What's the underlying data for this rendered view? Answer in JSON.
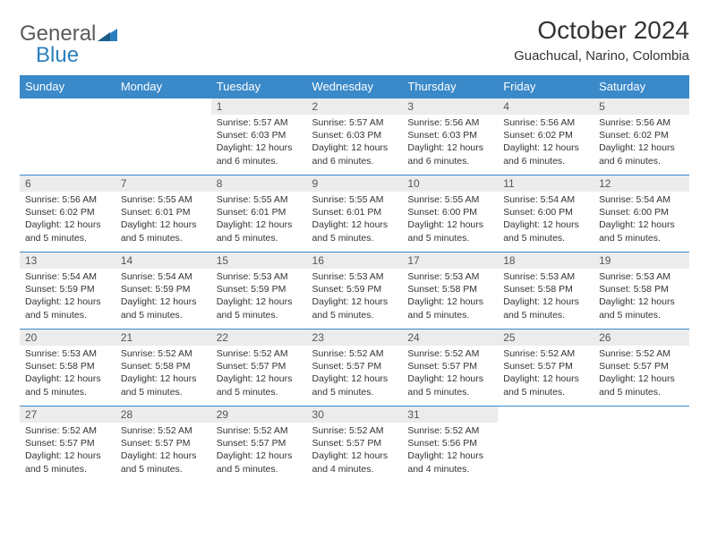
{
  "brand": {
    "name1": "General",
    "name2": "Blue"
  },
  "title": "October 2024",
  "location": "Guachucal, Narino, Colombia",
  "colors": {
    "header_bg": "#3a89c9",
    "header_text": "#ffffff",
    "daynum_bg": "#ececec",
    "cell_border": "#3a89c9",
    "logo_blue": "#2a7fbf",
    "logo_gray": "#5a5a5a"
  },
  "weekdays": [
    "Sunday",
    "Monday",
    "Tuesday",
    "Wednesday",
    "Thursday",
    "Friday",
    "Saturday"
  ],
  "weeks": [
    [
      null,
      null,
      {
        "n": "1",
        "sr": "5:57 AM",
        "ss": "6:03 PM",
        "dl": "12 hours and 6 minutes."
      },
      {
        "n": "2",
        "sr": "5:57 AM",
        "ss": "6:03 PM",
        "dl": "12 hours and 6 minutes."
      },
      {
        "n": "3",
        "sr": "5:56 AM",
        "ss": "6:03 PM",
        "dl": "12 hours and 6 minutes."
      },
      {
        "n": "4",
        "sr": "5:56 AM",
        "ss": "6:02 PM",
        "dl": "12 hours and 6 minutes."
      },
      {
        "n": "5",
        "sr": "5:56 AM",
        "ss": "6:02 PM",
        "dl": "12 hours and 6 minutes."
      }
    ],
    [
      {
        "n": "6",
        "sr": "5:56 AM",
        "ss": "6:02 PM",
        "dl": "12 hours and 5 minutes."
      },
      {
        "n": "7",
        "sr": "5:55 AM",
        "ss": "6:01 PM",
        "dl": "12 hours and 5 minutes."
      },
      {
        "n": "8",
        "sr": "5:55 AM",
        "ss": "6:01 PM",
        "dl": "12 hours and 5 minutes."
      },
      {
        "n": "9",
        "sr": "5:55 AM",
        "ss": "6:01 PM",
        "dl": "12 hours and 5 minutes."
      },
      {
        "n": "10",
        "sr": "5:55 AM",
        "ss": "6:00 PM",
        "dl": "12 hours and 5 minutes."
      },
      {
        "n": "11",
        "sr": "5:54 AM",
        "ss": "6:00 PM",
        "dl": "12 hours and 5 minutes."
      },
      {
        "n": "12",
        "sr": "5:54 AM",
        "ss": "6:00 PM",
        "dl": "12 hours and 5 minutes."
      }
    ],
    [
      {
        "n": "13",
        "sr": "5:54 AM",
        "ss": "5:59 PM",
        "dl": "12 hours and 5 minutes."
      },
      {
        "n": "14",
        "sr": "5:54 AM",
        "ss": "5:59 PM",
        "dl": "12 hours and 5 minutes."
      },
      {
        "n": "15",
        "sr": "5:53 AM",
        "ss": "5:59 PM",
        "dl": "12 hours and 5 minutes."
      },
      {
        "n": "16",
        "sr": "5:53 AM",
        "ss": "5:59 PM",
        "dl": "12 hours and 5 minutes."
      },
      {
        "n": "17",
        "sr": "5:53 AM",
        "ss": "5:58 PM",
        "dl": "12 hours and 5 minutes."
      },
      {
        "n": "18",
        "sr": "5:53 AM",
        "ss": "5:58 PM",
        "dl": "12 hours and 5 minutes."
      },
      {
        "n": "19",
        "sr": "5:53 AM",
        "ss": "5:58 PM",
        "dl": "12 hours and 5 minutes."
      }
    ],
    [
      {
        "n": "20",
        "sr": "5:53 AM",
        "ss": "5:58 PM",
        "dl": "12 hours and 5 minutes."
      },
      {
        "n": "21",
        "sr": "5:52 AM",
        "ss": "5:58 PM",
        "dl": "12 hours and 5 minutes."
      },
      {
        "n": "22",
        "sr": "5:52 AM",
        "ss": "5:57 PM",
        "dl": "12 hours and 5 minutes."
      },
      {
        "n": "23",
        "sr": "5:52 AM",
        "ss": "5:57 PM",
        "dl": "12 hours and 5 minutes."
      },
      {
        "n": "24",
        "sr": "5:52 AM",
        "ss": "5:57 PM",
        "dl": "12 hours and 5 minutes."
      },
      {
        "n": "25",
        "sr": "5:52 AM",
        "ss": "5:57 PM",
        "dl": "12 hours and 5 minutes."
      },
      {
        "n": "26",
        "sr": "5:52 AM",
        "ss": "5:57 PM",
        "dl": "12 hours and 5 minutes."
      }
    ],
    [
      {
        "n": "27",
        "sr": "5:52 AM",
        "ss": "5:57 PM",
        "dl": "12 hours and 5 minutes."
      },
      {
        "n": "28",
        "sr": "5:52 AM",
        "ss": "5:57 PM",
        "dl": "12 hours and 5 minutes."
      },
      {
        "n": "29",
        "sr": "5:52 AM",
        "ss": "5:57 PM",
        "dl": "12 hours and 5 minutes."
      },
      {
        "n": "30",
        "sr": "5:52 AM",
        "ss": "5:57 PM",
        "dl": "12 hours and 4 minutes."
      },
      {
        "n": "31",
        "sr": "5:52 AM",
        "ss": "5:56 PM",
        "dl": "12 hours and 4 minutes."
      },
      null,
      null
    ]
  ],
  "labels": {
    "sunrise": "Sunrise:",
    "sunset": "Sunset:",
    "daylight": "Daylight:"
  }
}
